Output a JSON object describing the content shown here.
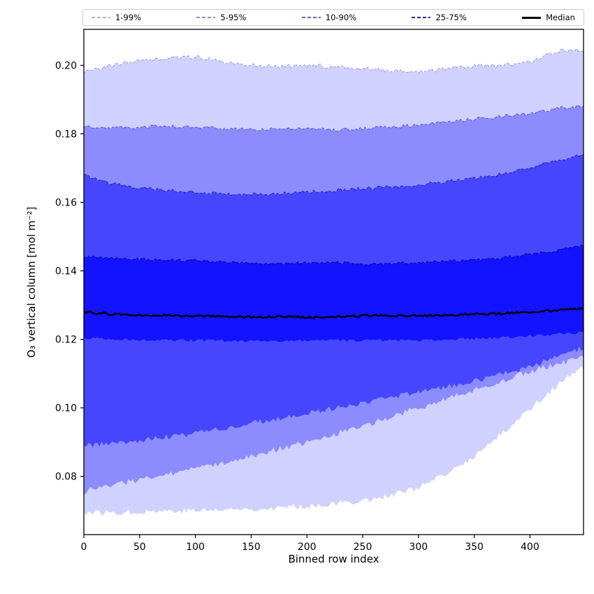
{
  "legend": [
    {
      "label": "1-99%",
      "color": "rgba(0,0,139,0.3)",
      "style": "dashed",
      "weight": 2
    },
    {
      "label": "5-95%",
      "color": "rgba(0,0,139,0.45)",
      "style": "dashed",
      "weight": 2
    },
    {
      "label": "10-90%",
      "color": "rgba(0,0,139,0.6)",
      "style": "dashed",
      "weight": 2
    },
    {
      "label": "25-75%",
      "color": "rgba(0,0,139,0.85)",
      "style": "dashed",
      "weight": 2
    },
    {
      "label": "Median",
      "color": "#000000",
      "style": "solid",
      "weight": 3
    }
  ],
  "chart_data": {
    "type": "area",
    "title": "",
    "xlabel": "Binned row index",
    "ylabel": "O₃ vertical column [mol m⁻²]",
    "xlim": [
      0,
      448
    ],
    "ylim": [
      0.063,
      0.2105
    ],
    "xticks": [
      0,
      50,
      100,
      150,
      200,
      250,
      300,
      350,
      400
    ],
    "yticks": [
      0.08,
      0.1,
      0.12,
      0.14,
      0.16,
      0.18,
      0.2
    ],
    "grid": false,
    "legend_position": "top",
    "x": [
      0,
      25,
      50,
      75,
      100,
      125,
      150,
      175,
      200,
      225,
      250,
      275,
      300,
      325,
      350,
      375,
      400,
      425,
      448
    ],
    "percentiles": {
      "p1": [
        0.0695,
        0.0694,
        0.0697,
        0.07,
        0.07,
        0.0702,
        0.0705,
        0.0709,
        0.0714,
        0.072,
        0.0729,
        0.0744,
        0.0768,
        0.0805,
        0.0858,
        0.0925,
        0.0998,
        0.1068,
        0.1118
      ],
      "p5": [
        0.0756,
        0.0776,
        0.0791,
        0.0806,
        0.0821,
        0.084,
        0.086,
        0.088,
        0.0901,
        0.0924,
        0.0948,
        0.0973,
        0.1,
        0.1026,
        0.1052,
        0.108,
        0.1106,
        0.113,
        0.1146
      ],
      "p10": [
        0.089,
        0.0896,
        0.0905,
        0.0915,
        0.0926,
        0.094,
        0.0955,
        0.097,
        0.0985,
        0.1,
        0.1015,
        0.103,
        0.1045,
        0.1061,
        0.1078,
        0.1098,
        0.112,
        0.115,
        0.1176
      ],
      "p25": [
        0.1205,
        0.12,
        0.1198,
        0.1198,
        0.1197,
        0.1196,
        0.1195,
        0.1196,
        0.1196,
        0.1197,
        0.1197,
        0.1198,
        0.1198,
        0.12,
        0.1202,
        0.1205,
        0.121,
        0.1216,
        0.1221
      ],
      "p50": [
        0.128,
        0.1274,
        0.127,
        0.127,
        0.1269,
        0.1267,
        0.1265,
        0.1267,
        0.1264,
        0.1265,
        0.1269,
        0.1269,
        0.1269,
        0.1271,
        0.1274,
        0.1275,
        0.128,
        0.1285,
        0.129
      ],
      "p75": [
        0.144,
        0.1436,
        0.1434,
        0.1431,
        0.143,
        0.1426,
        0.1422,
        0.1422,
        0.1424,
        0.1424,
        0.1421,
        0.1421,
        0.1424,
        0.1428,
        0.1431,
        0.1438,
        0.1448,
        0.146,
        0.1474
      ],
      "p90": [
        0.168,
        0.1655,
        0.1642,
        0.1635,
        0.163,
        0.1625,
        0.1622,
        0.1625,
        0.163,
        0.1635,
        0.164,
        0.1645,
        0.1652,
        0.166,
        0.167,
        0.1682,
        0.17,
        0.1722,
        0.174
      ],
      "p95": [
        0.182,
        0.1818,
        0.182,
        0.1823,
        0.182,
        0.1815,
        0.1812,
        0.1815,
        0.1815,
        0.1812,
        0.1815,
        0.182,
        0.1825,
        0.1835,
        0.1843,
        0.185,
        0.186,
        0.1875,
        0.188
      ],
      "p99": [
        0.198,
        0.2,
        0.2015,
        0.202,
        0.2025,
        0.201,
        0.2,
        0.1995,
        0.2,
        0.1995,
        0.199,
        0.1985,
        0.1982,
        0.199,
        0.1998,
        0.2,
        0.201,
        0.2042,
        0.2045
      ]
    },
    "bands": [
      {
        "label": "1-99%",
        "lower": "p1",
        "upper": "p99",
        "fill": "rgba(0,0,255,0.18)",
        "edge": "rgba(0,0,139,0.3)"
      },
      {
        "label": "5-95%",
        "lower": "p5",
        "upper": "p95",
        "fill": "rgba(0,0,255,0.33)",
        "edge": "rgba(0,0,139,0.45)"
      },
      {
        "label": "10-90%",
        "lower": "p10",
        "upper": "p90",
        "fill": "rgba(0,0,255,0.5)",
        "edge": "rgba(0,0,139,0.6)"
      },
      {
        "label": "25-75%",
        "lower": "p25",
        "upper": "p75",
        "fill": "rgba(0,0,255,0.72)",
        "edge": "rgba(0,0,139,0.85)"
      }
    ],
    "median": {
      "label": "Median",
      "series": "p50",
      "color": "#000000",
      "width": 2.4
    },
    "noise": {
      "p1": 0.0009,
      "p5": 0.0009,
      "p10": 0.0008,
      "p25": 0.0004,
      "p50": 0.00032,
      "p75": 0.0004,
      "p90": 0.0005,
      "p95": 0.0005,
      "p99": 0.0006
    }
  }
}
